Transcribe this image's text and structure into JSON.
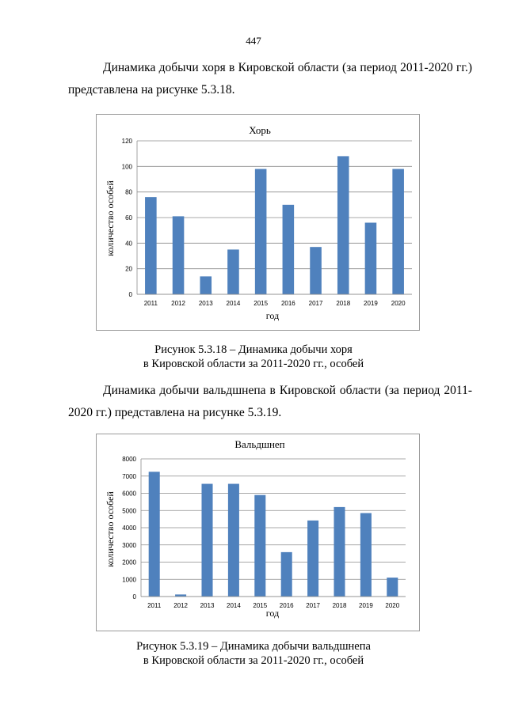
{
  "page_number": "447",
  "para1": {
    "line1": "Динамика добычи хоря в Кировской области (за период 2011-2020 гг.)",
    "line2": "представлена на рисунке 5.3.18."
  },
  "caption1": {
    "line1": "Рисунок 5.3.18 – Динамика добычи хоря",
    "line2": "в Кировской области за 2011-2020 гг., особей"
  },
  "para2": {
    "line1": "Динамика добычи вальдшнепа в Кировской области (за период 2011-",
    "line2": "2020 гг.) представлена на рисунке 5.3.19."
  },
  "caption2": {
    "line1": "Рисунок 5.3.19 – Динамика добычи вальдшнепа",
    "line2": "в Кировской области за 2011-2020 гг., особей"
  },
  "chart_data": [
    {
      "type": "bar",
      "title": "Хорь",
      "xlabel": "год",
      "ylabel": "количество особей",
      "categories": [
        "2011",
        "2012",
        "2013",
        "2014",
        "2015",
        "2016",
        "2017",
        "2018",
        "2019",
        "2020"
      ],
      "values": [
        76,
        61,
        14,
        35,
        98,
        70,
        37,
        108,
        56,
        98
      ],
      "ylim": [
        0,
        120
      ],
      "yticks": [
        0,
        20,
        40,
        60,
        80,
        100,
        120
      ],
      "grid": true,
      "legend": "none",
      "bar_color": "#4f81bd"
    },
    {
      "type": "bar",
      "title": "Вальдшнеп",
      "xlabel": "год",
      "ylabel": "количество особей",
      "categories": [
        "2011",
        "2012",
        "2013",
        "2014",
        "2015",
        "2016",
        "2017",
        "2018",
        "2019",
        "2020"
      ],
      "values": [
        7250,
        120,
        6550,
        6550,
        5900,
        2580,
        4420,
        5200,
        4850,
        1100
      ],
      "ylim": [
        0,
        8000
      ],
      "yticks": [
        0,
        1000,
        2000,
        3000,
        4000,
        5000,
        6000,
        7000,
        8000
      ],
      "grid": true,
      "legend": "none",
      "bar_color": "#4f81bd"
    }
  ]
}
